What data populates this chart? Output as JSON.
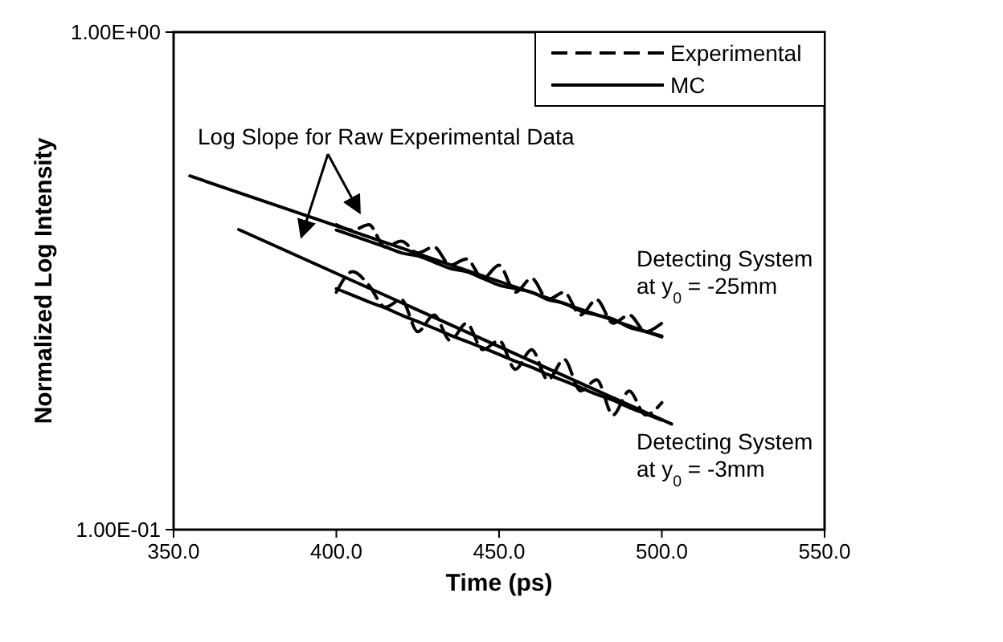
{
  "chart_data": {
    "type": "line",
    "xlabel": "Time (ps)",
    "ylabel": "Normalized Log Intensity",
    "log": "y",
    "xlim": [
      350,
      550
    ],
    "ylim": [
      0.1,
      1
    ],
    "xticks": [
      {
        "value": 350,
        "label": "350.0"
      },
      {
        "value": 400,
        "label": "400.0"
      },
      {
        "value": 450,
        "label": "450.0"
      },
      {
        "value": 500,
        "label": "500.0"
      },
      {
        "value": 550,
        "label": "550.0"
      }
    ],
    "yticks": [
      {
        "value": 0.1,
        "label": "1.00E-01"
      },
      {
        "value": 1,
        "label": "1.00E+00"
      }
    ],
    "grid": false,
    "legend": "top right",
    "x": [
      400,
      405,
      410,
      415,
      420,
      425,
      430,
      435,
      440,
      445,
      450,
      455,
      460,
      465,
      470,
      475,
      480,
      485,
      490,
      495,
      500
    ],
    "series": [
      {
        "name": "Experimental",
        "color": "#000000",
        "line_style": "dashed",
        "values": [
          0.41,
          0.4,
          0.41,
          0.37,
          0.38,
          0.36,
          0.37,
          0.34,
          0.35,
          0.32,
          0.34,
          0.3,
          0.32,
          0.29,
          0.3,
          0.27,
          0.29,
          0.26,
          0.27,
          0.25,
          0.26
        ]
      },
      {
        "name": "MC",
        "color": "#000000",
        "line_style": "solid",
        "values": [
          0.4,
          0.39,
          0.38,
          0.37,
          0.36,
          0.355,
          0.345,
          0.335,
          0.33,
          0.32,
          0.31,
          0.305,
          0.3,
          0.29,
          0.285,
          0.275,
          0.27,
          0.265,
          0.255,
          0.25,
          0.245
        ]
      },
      {
        "color": "#000000",
        "line_style": "dashed",
        "values": [
          0.3,
          0.33,
          0.31,
          0.28,
          0.29,
          0.25,
          0.27,
          0.24,
          0.26,
          0.23,
          0.24,
          0.21,
          0.23,
          0.2,
          0.22,
          0.19,
          0.2,
          0.17,
          0.19,
          0.17,
          0.18
        ]
      },
      {
        "color": "#000000",
        "line_style": "solid",
        "values": [
          0.305,
          0.296,
          0.287,
          0.279,
          0.27,
          0.262,
          0.254,
          0.246,
          0.239,
          0.232,
          0.225,
          0.218,
          0.212,
          0.205,
          0.199,
          0.193,
          0.187,
          0.182,
          0.176,
          0.171,
          0.166
        ]
      },
      {
        "color": "#000000",
        "line_style": "solid",
        "x": [
          355,
          500
        ],
        "values": [
          0.514,
          0.244
        ]
      },
      {
        "color": "#000000",
        "line_style": "solid",
        "x": [
          370,
          503
        ],
        "values": [
          0.401,
          0.163
        ]
      }
    ],
    "annotations": [
      "Log Slope for Raw Experimental Data",
      "Detecting System\nat y$_{0}$ = -25mm",
      "Detecting System\nat y$_{0}$ = -3mm"
    ]
  }
}
